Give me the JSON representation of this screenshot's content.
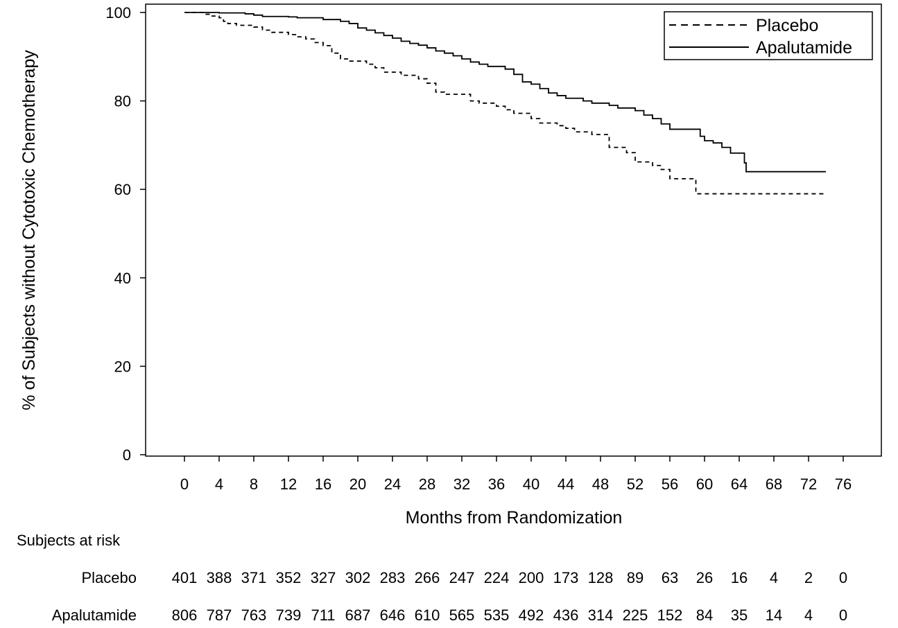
{
  "chart_data": {
    "type": "line",
    "subtype": "kaplan-meier",
    "title": "",
    "xlabel": "Months from Randomization",
    "ylabel": "% of Subjects without Cytotoxic Chemotherapy",
    "xlim": [
      -4,
      80
    ],
    "ylim": [
      0,
      100
    ],
    "x_ticks": [
      0,
      4,
      8,
      12,
      16,
      20,
      24,
      28,
      32,
      36,
      40,
      44,
      48,
      52,
      56,
      60,
      64,
      68,
      72,
      76
    ],
    "y_ticks": [
      0,
      20,
      40,
      60,
      80,
      100
    ],
    "grid": false,
    "legend": {
      "position": "top-right"
    },
    "series": [
      {
        "name": "Placebo",
        "line_style": "dashed",
        "color": "#000000",
        "points": [
          [
            0,
            100
          ],
          [
            2.5,
            99.6
          ],
          [
            3,
            99.2
          ],
          [
            4,
            98.8
          ],
          [
            4.5,
            98.0
          ],
          [
            5,
            97.5
          ],
          [
            6,
            97.1
          ],
          [
            8,
            96.7
          ],
          [
            9,
            96.0
          ],
          [
            10,
            95.5
          ],
          [
            12,
            95.0
          ],
          [
            13,
            94.5
          ],
          [
            14,
            94.0
          ],
          [
            15,
            93.2
          ],
          [
            16,
            92.5
          ],
          [
            17,
            90.8
          ],
          [
            18,
            89.5
          ],
          [
            19,
            89.0
          ],
          [
            21,
            88.3
          ],
          [
            22,
            87.5
          ],
          [
            23,
            86.5
          ],
          [
            25,
            85.8
          ],
          [
            27,
            85.0
          ],
          [
            28,
            84.0
          ],
          [
            29,
            82.0
          ],
          [
            30,
            81.5
          ],
          [
            33,
            80.0
          ],
          [
            34,
            79.5
          ],
          [
            36,
            78.8
          ],
          [
            37,
            78.0
          ],
          [
            38,
            77.2
          ],
          [
            40,
            76.0
          ],
          [
            41,
            75.0
          ],
          [
            43,
            74.4
          ],
          [
            44,
            73.8
          ],
          [
            45,
            73.0
          ],
          [
            47,
            72.4
          ],
          [
            49,
            69.5
          ],
          [
            51,
            68.3
          ],
          [
            52,
            66.2
          ],
          [
            54,
            65.4
          ],
          [
            55,
            64.5
          ],
          [
            56,
            62.4
          ],
          [
            58,
            62.4
          ],
          [
            59,
            59.0
          ],
          [
            74,
            59.0
          ]
        ]
      },
      {
        "name": "Apalutamide",
        "line_style": "solid",
        "color": "#000000",
        "points": [
          [
            0,
            100
          ],
          [
            4,
            99.9
          ],
          [
            7,
            99.7
          ],
          [
            8,
            99.4
          ],
          [
            9,
            99.1
          ],
          [
            12,
            99.0
          ],
          [
            13,
            98.8
          ],
          [
            16,
            98.4
          ],
          [
            18,
            98.0
          ],
          [
            19,
            97.5
          ],
          [
            20,
            96.5
          ],
          [
            21,
            96.0
          ],
          [
            22,
            95.4
          ],
          [
            23,
            94.8
          ],
          [
            24,
            94.2
          ],
          [
            25,
            93.5
          ],
          [
            26,
            93.0
          ],
          [
            27,
            92.6
          ],
          [
            28,
            92.0
          ],
          [
            29,
            91.3
          ],
          [
            30,
            90.8
          ],
          [
            31,
            90.2
          ],
          [
            32,
            89.5
          ],
          [
            33,
            88.8
          ],
          [
            34,
            88.3
          ],
          [
            35,
            87.8
          ],
          [
            37,
            87.2
          ],
          [
            38,
            86.0
          ],
          [
            39,
            84.3
          ],
          [
            40,
            83.8
          ],
          [
            41,
            82.8
          ],
          [
            42,
            81.8
          ],
          [
            43,
            81.2
          ],
          [
            44,
            80.6
          ],
          [
            46,
            80.0
          ],
          [
            47,
            79.5
          ],
          [
            49,
            79.0
          ],
          [
            50,
            78.4
          ],
          [
            52,
            77.8
          ],
          [
            53,
            76.8
          ],
          [
            54,
            76.0
          ],
          [
            55,
            74.8
          ],
          [
            56,
            73.6
          ],
          [
            59,
            73.6
          ],
          [
            59.5,
            72.0
          ],
          [
            60,
            71.0
          ],
          [
            61,
            70.5
          ],
          [
            62,
            69.5
          ],
          [
            63,
            68.2
          ],
          [
            64.5,
            68.2
          ],
          [
            64.6,
            66.0
          ],
          [
            64.8,
            64.0
          ],
          [
            74,
            64.0
          ]
        ]
      }
    ],
    "risk_table": {
      "title": "Subjects at risk",
      "rows": [
        {
          "label": "Placebo",
          "values": [
            "401",
            "388",
            "371",
            "352",
            "327",
            "302",
            "283",
            "266",
            "247",
            "224",
            "200",
            "173",
            "128",
            "89",
            "63",
            "26",
            "16",
            "4",
            "2",
            "0"
          ]
        },
        {
          "label": "Apalutamide",
          "values": [
            "806",
            "787",
            "763",
            "739",
            "711",
            "687",
            "646",
            "610",
            "565",
            "535",
            "492",
            "436",
            "314",
            "225",
            "152",
            "84",
            "35",
            "14",
            "4",
            "0"
          ]
        }
      ]
    }
  }
}
